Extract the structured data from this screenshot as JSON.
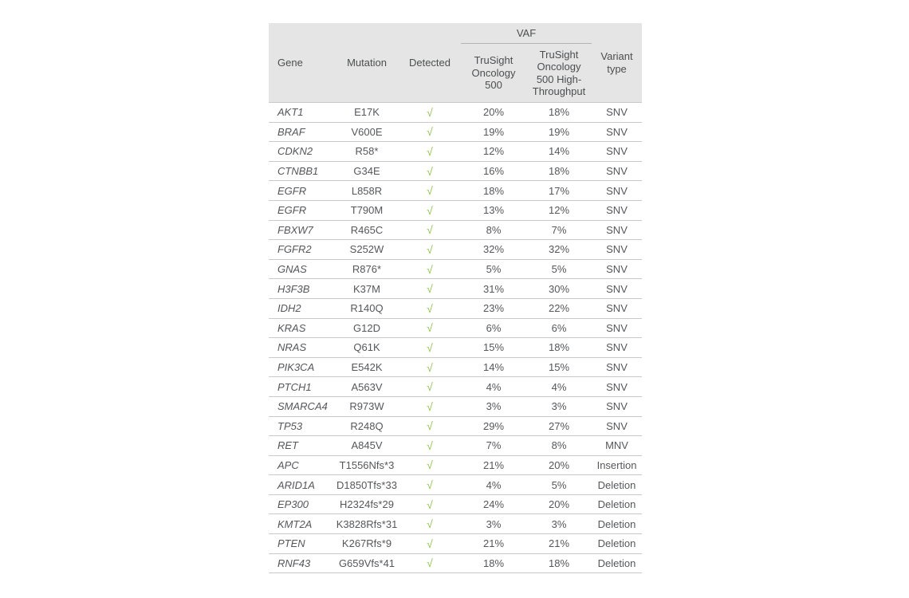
{
  "table": {
    "header": {
      "gene": "Gene",
      "mutation": "Mutation",
      "detected": "Detected",
      "vaf_group": "VAF",
      "tso500": "TruSight Oncology 500",
      "tso500_ht": "TruSight Oncology 500 High-Throughput",
      "variant_type": "Variant type"
    },
    "detected_symbol": "√",
    "rows": [
      {
        "gene": "AKT1",
        "mutation": "E17K",
        "detected": true,
        "vaf_tso500": "20%",
        "vaf_tso500_ht": "18%",
        "variant_type": "SNV"
      },
      {
        "gene": "BRAF",
        "mutation": "V600E",
        "detected": true,
        "vaf_tso500": "19%",
        "vaf_tso500_ht": "19%",
        "variant_type": "SNV"
      },
      {
        "gene": "CDKN2",
        "mutation": "R58*",
        "detected": true,
        "vaf_tso500": "12%",
        "vaf_tso500_ht": "14%",
        "variant_type": "SNV"
      },
      {
        "gene": "CTNBB1",
        "mutation": "G34E",
        "detected": true,
        "vaf_tso500": "16%",
        "vaf_tso500_ht": "18%",
        "variant_type": "SNV"
      },
      {
        "gene": "EGFR",
        "mutation": "L858R",
        "detected": true,
        "vaf_tso500": "18%",
        "vaf_tso500_ht": "17%",
        "variant_type": "SNV"
      },
      {
        "gene": "EGFR",
        "mutation": "T790M",
        "detected": true,
        "vaf_tso500": "13%",
        "vaf_tso500_ht": "12%",
        "variant_type": "SNV"
      },
      {
        "gene": "FBXW7",
        "mutation": "R465C",
        "detected": true,
        "vaf_tso500": "8%",
        "vaf_tso500_ht": "7%",
        "variant_type": "SNV"
      },
      {
        "gene": "FGFR2",
        "mutation": "S252W",
        "detected": true,
        "vaf_tso500": "32%",
        "vaf_tso500_ht": "32%",
        "variant_type": "SNV"
      },
      {
        "gene": "GNAS",
        "mutation": "R876*",
        "detected": true,
        "vaf_tso500": "5%",
        "vaf_tso500_ht": "5%",
        "variant_type": "SNV"
      },
      {
        "gene": "H3F3B",
        "mutation": "K37M",
        "detected": true,
        "vaf_tso500": "31%",
        "vaf_tso500_ht": "30%",
        "variant_type": "SNV"
      },
      {
        "gene": "IDH2",
        "mutation": "R140Q",
        "detected": true,
        "vaf_tso500": "23%",
        "vaf_tso500_ht": "22%",
        "variant_type": "SNV"
      },
      {
        "gene": "KRAS",
        "mutation": "G12D",
        "detected": true,
        "vaf_tso500": "6%",
        "vaf_tso500_ht": "6%",
        "variant_type": "SNV"
      },
      {
        "gene": "NRAS",
        "mutation": "Q61K",
        "detected": true,
        "vaf_tso500": "15%",
        "vaf_tso500_ht": "18%",
        "variant_type": "SNV"
      },
      {
        "gene": "PIK3CA",
        "mutation": "E542K",
        "detected": true,
        "vaf_tso500": "14%",
        "vaf_tso500_ht": "15%",
        "variant_type": "SNV"
      },
      {
        "gene": "PTCH1",
        "mutation": "A563V",
        "detected": true,
        "vaf_tso500": "4%",
        "vaf_tso500_ht": "4%",
        "variant_type": "SNV"
      },
      {
        "gene": "SMARCA4",
        "mutation": "R973W",
        "detected": true,
        "vaf_tso500": "3%",
        "vaf_tso500_ht": "3%",
        "variant_type": "SNV"
      },
      {
        "gene": "TP53",
        "mutation": "R248Q",
        "detected": true,
        "vaf_tso500": "29%",
        "vaf_tso500_ht": "27%",
        "variant_type": "SNV"
      },
      {
        "gene": "RET",
        "mutation": "A845V",
        "detected": true,
        "vaf_tso500": "7%",
        "vaf_tso500_ht": "8%",
        "variant_type": "MNV"
      },
      {
        "gene": "APC",
        "mutation": "T1556Nfs*3",
        "detected": true,
        "vaf_tso500": "21%",
        "vaf_tso500_ht": "20%",
        "variant_type": "Insertion"
      },
      {
        "gene": "ARID1A",
        "mutation": "D1850Tfs*33",
        "detected": true,
        "vaf_tso500": "4%",
        "vaf_tso500_ht": "5%",
        "variant_type": "Deletion"
      },
      {
        "gene": "EP300",
        "mutation": "H2324fs*29",
        "detected": true,
        "vaf_tso500": "24%",
        "vaf_tso500_ht": "20%",
        "variant_type": "Deletion"
      },
      {
        "gene": "KMT2A",
        "mutation": "K3828Rfs*31",
        "detected": true,
        "vaf_tso500": "3%",
        "vaf_tso500_ht": "3%",
        "variant_type": "Deletion"
      },
      {
        "gene": "PTEN",
        "mutation": "K267Rfs*9",
        "detected": true,
        "vaf_tso500": "21%",
        "vaf_tso500_ht": "21%",
        "variant_type": "Deletion"
      },
      {
        "gene": "RNF43",
        "mutation": "G659Vfs*41",
        "detected": true,
        "vaf_tso500": "18%",
        "vaf_tso500_ht": "18%",
        "variant_type": "Deletion"
      }
    ]
  },
  "colors": {
    "header_bg": "#e5e5e5",
    "header_text": "#4c4e50",
    "text": "#55575a",
    "check_green": "#8dc63f",
    "row_border": "#c9c9c9",
    "vaf_underline": "#b3b3b4"
  }
}
